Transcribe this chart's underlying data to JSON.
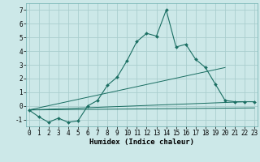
{
  "xlabel": "Humidex (Indice chaleur)",
  "bg_color": "#cce8e8",
  "grid_color": "#aacece",
  "line_color": "#1a6e62",
  "lines": [
    {
      "x": [
        0,
        1,
        2,
        3,
        4,
        5,
        6,
        7,
        8,
        9,
        10,
        11,
        12,
        13,
        14,
        15,
        16,
        17,
        18,
        19,
        20,
        21,
        22,
        23
      ],
      "y": [
        -0.3,
        -0.8,
        -1.2,
        -0.9,
        -1.2,
        -1.1,
        0.0,
        0.4,
        1.5,
        2.1,
        3.3,
        4.7,
        5.3,
        5.1,
        7.0,
        4.3,
        4.5,
        3.4,
        2.8,
        1.6,
        0.4,
        0.3,
        0.3,
        0.3
      ],
      "marker": true
    },
    {
      "x": [
        0,
        20
      ],
      "y": [
        -0.3,
        2.8
      ],
      "marker": false
    },
    {
      "x": [
        0,
        22
      ],
      "y": [
        -0.3,
        0.3
      ],
      "marker": false
    },
    {
      "x": [
        0,
        23
      ],
      "y": [
        -0.3,
        -0.15
      ],
      "marker": false
    }
  ],
  "xlim": [
    -0.3,
    23.3
  ],
  "ylim": [
    -1.5,
    7.5
  ],
  "yticks": [
    -1,
    0,
    1,
    2,
    3,
    4,
    5,
    6,
    7
  ],
  "xticks": [
    0,
    1,
    2,
    3,
    4,
    5,
    6,
    7,
    8,
    9,
    10,
    11,
    12,
    13,
    14,
    15,
    16,
    17,
    18,
    19,
    20,
    21,
    22,
    23
  ],
  "tick_fontsize": 5.5,
  "xlabel_fontsize": 6.5
}
